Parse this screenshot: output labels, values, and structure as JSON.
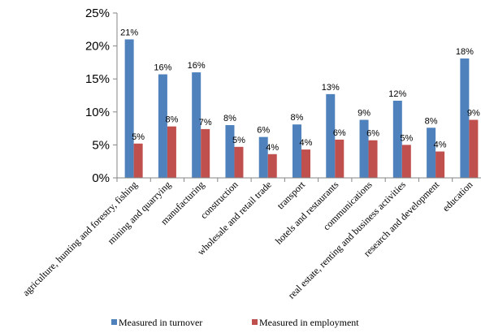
{
  "chart_data": {
    "type": "bar",
    "categories": [
      "agriculture, hunting and forestry, fishing",
      "mining and quarrying",
      "manufacturing",
      "construction",
      "wholesale and retail trade",
      "transport",
      "hotels and restaurants",
      "communications",
      "real estate, renting and business activities",
      "research and development",
      "education"
    ],
    "series": [
      {
        "name": "Measured in turnover",
        "color": "#4F81BD",
        "values": [
          21,
          15.7,
          16,
          8,
          6.2,
          8.1,
          12.7,
          8.8,
          11.7,
          7.6,
          18.1
        ],
        "labels": [
          "21%",
          "16%",
          "16%",
          "8%",
          "6%",
          "8%",
          "13%",
          "9%",
          "12%",
          "8%",
          "18%"
        ]
      },
      {
        "name": "Measured in employment",
        "color": "#C0504D",
        "values": [
          5.2,
          7.8,
          7.4,
          4.7,
          3.6,
          4.3,
          5.8,
          5.7,
          5.0,
          4.0,
          8.8
        ],
        "labels": [
          "5%",
          "8%",
          "7%",
          "5%",
          "4%",
          "4%",
          "6%",
          "6%",
          "5%",
          "4%",
          "9%"
        ]
      }
    ],
    "yticks": [
      "0%",
      "5%",
      "10%",
      "15%",
      "20%",
      "25%"
    ],
    "ylim": [
      0,
      25
    ],
    "legend_position": "bottom",
    "grid": false
  }
}
